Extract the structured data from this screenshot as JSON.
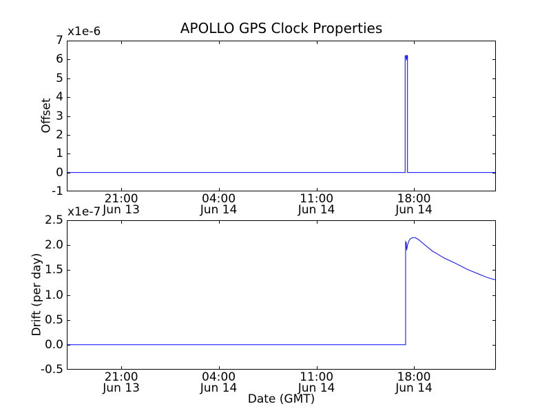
{
  "figure": {
    "title": "APOLLO GPS Clock Properties",
    "xlabel": "Date (GMT)",
    "background": "#ffffff",
    "axis_color": "#000000",
    "line_color": "#0000ff"
  },
  "xticks": [
    {
      "pos": 0.127,
      "time": "21:00",
      "date": "Jun 13"
    },
    {
      "pos": 0.354,
      "time": "04:00",
      "date": "Jun 14"
    },
    {
      "pos": 0.582,
      "time": "11:00",
      "date": "Jun 14"
    },
    {
      "pos": 0.809,
      "time": "18:00",
      "date": "Jun 14"
    }
  ],
  "chart_data": [
    {
      "type": "line",
      "name": "offset-subplot",
      "ylabel": "Offset",
      "offset_text": "x1e-6",
      "ylim": [
        -1,
        7
      ],
      "yticks": [
        "7",
        "6",
        "5",
        "4",
        "3",
        "2",
        "1",
        "0",
        "-1"
      ],
      "x_axis_note": "x is fraction of axis width; ticks at 21:00 Jun 13, 04:00, 11:00, 18:00 Jun 14 GMT",
      "annotation": "flat at 0 with a narrow spike to ~6.2e-6 shortly before 18:00 Jun 14",
      "series": [
        {
          "name": "offset",
          "color": "#0000ff",
          "points": [
            [
              0.0,
              0
            ],
            [
              0.7875,
              0
            ],
            [
              0.7885,
              0
            ],
            [
              0.7885,
              6.18
            ],
            [
              0.79,
              6.21
            ],
            [
              0.7915,
              5.95
            ],
            [
              0.793,
              6.22
            ],
            [
              0.794,
              6.2
            ],
            [
              0.794,
              0
            ],
            [
              0.796,
              0
            ],
            [
              1.0,
              0
            ]
          ]
        }
      ]
    },
    {
      "type": "line",
      "name": "drift-subplot",
      "ylabel": "Drift (per day)",
      "offset_text": "x1e-7",
      "ylim": [
        -0.5,
        2.5
      ],
      "yticks": [
        "2.5",
        "2.0",
        "1.5",
        "1.0",
        "0.5",
        "0.0",
        "-0.5"
      ],
      "x_axis_note": "x is fraction of axis width; ticks at 21:00 Jun 13, 04:00, 11:00, 18:00 Jun 14 GMT",
      "annotation": "flat at 0, steps up to ~2.07e-7 just before 18:00 Jun 14, brief dip to ~1.9e-7, peak ~2.15e-7, slow decay to ~1.3e-7 at right edge",
      "series": [
        {
          "name": "drift",
          "color": "#0000ff",
          "points": [
            [
              0.0,
              0
            ],
            [
              0.7895,
              0
            ],
            [
              0.7895,
              2.07
            ],
            [
              0.791,
              2.05
            ],
            [
              0.792,
              1.9
            ],
            [
              0.7945,
              2.02
            ],
            [
              0.7975,
              2.09
            ],
            [
              0.801,
              2.13
            ],
            [
              0.806,
              2.15
            ],
            [
              0.812,
              2.15
            ],
            [
              0.82,
              2.11
            ],
            [
              0.831,
              2.03
            ],
            [
              0.852,
              1.88
            ],
            [
              0.88,
              1.74
            ],
            [
              0.907,
              1.63
            ],
            [
              0.934,
              1.51
            ],
            [
              0.96,
              1.42
            ],
            [
              0.98,
              1.35
            ],
            [
              1.0,
              1.3
            ]
          ]
        }
      ]
    }
  ]
}
